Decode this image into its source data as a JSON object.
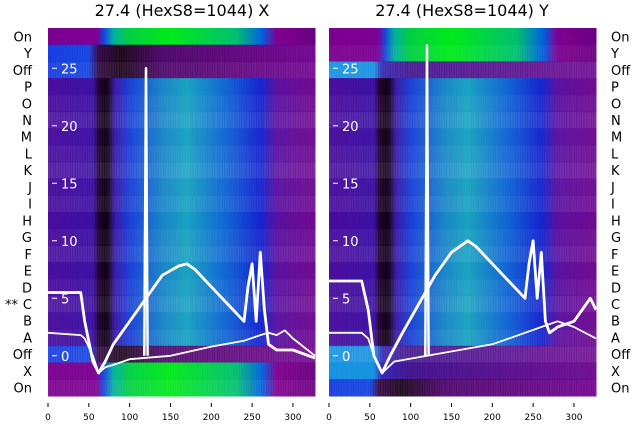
{
  "chart_data": [
    {
      "type": "heatmap",
      "title": "27.4 (HexS8=1044) X",
      "xlim": [
        0,
        327
      ],
      "xticks": [
        "0",
        "50",
        "100",
        "150",
        "200",
        "250",
        "300"
      ],
      "overlay_ylim": [
        -3.5,
        28.5
      ],
      "overlay_yticks": [
        "0",
        "5",
        "10",
        "15",
        "20",
        "25"
      ],
      "row_labels": [
        "On",
        "Y",
        "Off",
        "P",
        "O",
        "N",
        "M",
        "L",
        "K",
        "J",
        "I",
        "H",
        "G",
        "F",
        "E",
        "D",
        "C",
        "B",
        "A",
        "Off",
        "X",
        "On"
      ],
      "row_types": [
        "on",
        "off",
        "off",
        "cell",
        "cell",
        "cell",
        "cell",
        "cell",
        "cell",
        "cell",
        "cell",
        "cell",
        "cell",
        "cell",
        "cell",
        "cell",
        "cell",
        "cell",
        "cell",
        "off",
        "on",
        "on"
      ],
      "marked_row": {
        "label": "C",
        "marker": "**"
      },
      "series": [
        {
          "name": "trace-main",
          "x": [
            0,
            40,
            45,
            55,
            62,
            70,
            80,
            100,
            120,
            140,
            160,
            170,
            180,
            200,
            220,
            240,
            245,
            250,
            255,
            260,
            265,
            270,
            280,
            300,
            327
          ],
          "y": [
            5.5,
            5.5,
            3,
            -0.5,
            -1.5,
            -0.5,
            1,
            3,
            5,
            7,
            7.8,
            8,
            7.5,
            6,
            4.5,
            3,
            6,
            8,
            3,
            9,
            4,
            1,
            0.5,
            0.5,
            -0.2
          ]
        },
        {
          "name": "trace-low",
          "x": [
            0,
            40,
            45,
            55,
            62,
            70,
            80,
            100,
            150,
            200,
            240,
            260,
            270,
            280,
            290,
            300,
            327
          ],
          "y": [
            2,
            1.8,
            1.5,
            0,
            -1.5,
            -1,
            -0.8,
            -0.3,
            0,
            0.8,
            1.3,
            1.8,
            2,
            1.8,
            2.2,
            1.5,
            0
          ]
        },
        {
          "name": "trace-spike",
          "x": [
            118,
            120,
            122
          ],
          "y": [
            0,
            25,
            0
          ]
        }
      ]
    },
    {
      "type": "heatmap",
      "title": "27.4 (HexS8=1044) Y",
      "xlim": [
        0,
        327
      ],
      "xticks": [
        "0",
        "50",
        "100",
        "150",
        "200",
        "250",
        "300"
      ],
      "overlay_ylim": [
        -3.5,
        28.5
      ],
      "overlay_yticks": [
        "0",
        "5",
        "10",
        "15",
        "20",
        "25"
      ],
      "row_labels": [
        "On",
        "Y",
        "Off",
        "P",
        "O",
        "N",
        "M",
        "L",
        "K",
        "J",
        "I",
        "H",
        "G",
        "F",
        "E",
        "D",
        "C",
        "B",
        "A",
        "Off",
        "X",
        "On"
      ],
      "row_types": [
        "on",
        "on",
        "lightoff",
        "cell",
        "cell",
        "cell",
        "cell",
        "cell",
        "cell",
        "cell",
        "cell",
        "cell",
        "cell",
        "cell",
        "cell",
        "cell",
        "cell",
        "cell",
        "cell",
        "lightoff",
        "lightoff",
        "off"
      ],
      "series": [
        {
          "name": "trace-main",
          "x": [
            0,
            40,
            48,
            55,
            65,
            75,
            90,
            110,
            130,
            150,
            170,
            180,
            200,
            220,
            240,
            245,
            250,
            255,
            260,
            265,
            270,
            280,
            300,
            320,
            327
          ],
          "y": [
            6.5,
            6.5,
            4,
            0,
            -1.5,
            0,
            2,
            4.5,
            7,
            9,
            10,
            9.5,
            8,
            6.5,
            5,
            8,
            10,
            5,
            9,
            3,
            2,
            2.5,
            3,
            5,
            4
          ]
        },
        {
          "name": "trace-low",
          "x": [
            0,
            40,
            48,
            55,
            65,
            80,
            120,
            160,
            200,
            240,
            260,
            280,
            300,
            327
          ],
          "y": [
            2,
            2,
            1.5,
            0,
            -1.5,
            -0.5,
            0,
            0.5,
            1,
            2,
            2.5,
            3,
            2.5,
            1.5
          ]
        },
        {
          "name": "trace-spike",
          "x": [
            118,
            120,
            122
          ],
          "y": [
            0,
            27,
            0
          ]
        }
      ]
    }
  ],
  "colormaps": {
    "cell": [
      [
        0,
        "#4a0c9c"
      ],
      [
        55,
        "#3c10a4"
      ],
      [
        62,
        "#200030"
      ],
      [
        72,
        "#0e000e"
      ],
      [
        82,
        "#3a1aa8"
      ],
      [
        100,
        "#1a40d8"
      ],
      [
        140,
        "#1a84c8"
      ],
      [
        170,
        "#18a2c0"
      ],
      [
        220,
        "#1062d4"
      ],
      [
        260,
        "#1424d0"
      ],
      [
        280,
        "#5a10a0"
      ],
      [
        327,
        "#700a90"
      ]
    ],
    "on": [
      [
        0,
        "#7c0090"
      ],
      [
        60,
        "#7c0092"
      ],
      [
        68,
        "#1a40e0"
      ],
      [
        80,
        "#00b0a0"
      ],
      [
        100,
        "#00d040"
      ],
      [
        150,
        "#00ea18"
      ],
      [
        230,
        "#00c070"
      ],
      [
        262,
        "#0060e0"
      ],
      [
        280,
        "#800090"
      ],
      [
        327,
        "#6a0080"
      ]
    ],
    "off": [
      [
        0,
        "#1034e0"
      ],
      [
        50,
        "#1040e0"
      ],
      [
        62,
        "#300040"
      ],
      [
        90,
        "#160016"
      ],
      [
        140,
        "#4a0068"
      ],
      [
        327,
        "#700090"
      ]
    ],
    "lightoff": [
      [
        0,
        "#1090e0"
      ],
      [
        55,
        "#1090e0"
      ],
      [
        65,
        "#3020b0"
      ],
      [
        100,
        "#40108c"
      ],
      [
        327,
        "#6c0a90"
      ]
    ]
  }
}
